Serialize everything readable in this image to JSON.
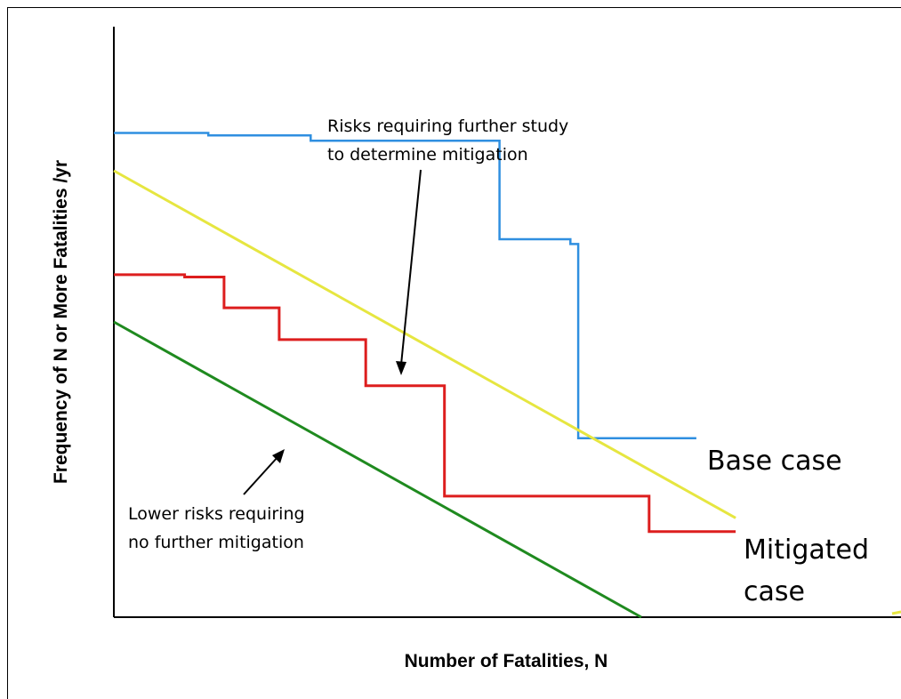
{
  "chart_data": {
    "type": "line",
    "xlabel": "Number of Fatalities, N",
    "ylabel": "Frequency of N or More Fatalities /yr",
    "xlim": [
      0,
      100
    ],
    "ylim": [
      0,
      100
    ],
    "grid": false,
    "series": [
      {
        "name": "Base case",
        "color": "#2f8fe0",
        "step": true,
        "points": [
          [
            0,
            82
          ],
          [
            12,
            82
          ],
          [
            12,
            81.6
          ],
          [
            25,
            81.6
          ],
          [
            25,
            80.7
          ],
          [
            49,
            80.7
          ],
          [
            49,
            64
          ],
          [
            58,
            64
          ],
          [
            58,
            63.2
          ],
          [
            59,
            63.2
          ],
          [
            59,
            30.3
          ],
          [
            74,
            30.3
          ]
        ]
      },
      {
        "name": "Mitigated case",
        "color": "#dd1e1e",
        "step": true,
        "points": [
          [
            0,
            58
          ],
          [
            9,
            58
          ],
          [
            9,
            57.6
          ],
          [
            14,
            57.6
          ],
          [
            14,
            52.4
          ],
          [
            21,
            52.4
          ],
          [
            21,
            47
          ],
          [
            32,
            47
          ],
          [
            32,
            39.2
          ],
          [
            42,
            39.2
          ],
          [
            42,
            20.5
          ],
          [
            68,
            20.5
          ],
          [
            68,
            14.5
          ],
          [
            79,
            14.5
          ]
        ]
      },
      {
        "name": "",
        "color": "#e6e640",
        "points": [
          [
            0,
            75.6
          ],
          [
            79,
            16.8
          ]
        ]
      },
      {
        "name": "",
        "color": "#1f8a1f",
        "points": [
          [
            0,
            50
          ],
          [
            67,
            0
          ]
        ]
      }
    ],
    "annotations": [
      {
        "text": [
          "Risks requiring further study",
          "to determine mitigation"
        ]
      },
      {
        "text": [
          "Lower risks requiring",
          "no further mitigation"
        ]
      }
    ]
  }
}
